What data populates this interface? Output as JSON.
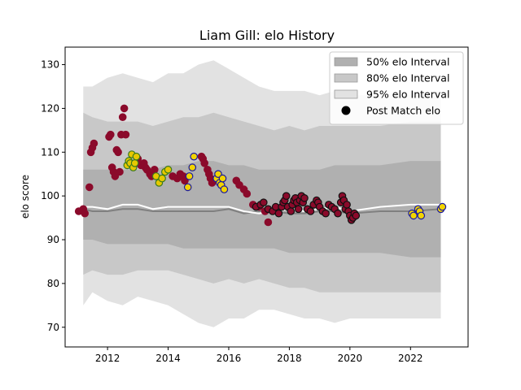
{
  "chart_data": {
    "type": "scatter",
    "title": "Liam Gill: elo History",
    "xlabel": "",
    "ylabel": "elo score",
    "xlim": [
      2010.6,
      2023.9
    ],
    "ylim": [
      65.5,
      134.0
    ],
    "xticks": [
      2012,
      2014,
      2016,
      2018,
      2020,
      2022
    ],
    "xtick_labels": [
      "2012",
      "2014",
      "2016",
      "2018",
      "2020",
      "2022"
    ],
    "yticks": [
      70,
      80,
      90,
      100,
      110,
      120,
      130
    ],
    "ytick_labels": [
      "70",
      "80",
      "90",
      "100",
      "110",
      "120",
      "130"
    ],
    "grid": false,
    "legend_position": "top-right",
    "legend": [
      {
        "label": "50% elo Interval",
        "swatch": "band",
        "color": "#b0b0b0"
      },
      {
        "label": "80% elo Interval",
        "swatch": "band",
        "color": "#c8c8c8"
      },
      {
        "label": "95% elo Interval",
        "swatch": "band",
        "color": "#e2e2e2"
      },
      {
        "label": "Post Match elo",
        "swatch": "marker",
        "color": "#000000"
      }
    ],
    "bands": {
      "x": [
        2011.2,
        2011.5,
        2012.0,
        2012.5,
        2013.0,
        2013.5,
        2014.0,
        2014.5,
        2015.0,
        2015.5,
        2016.0,
        2016.5,
        2017.0,
        2017.5,
        2018.0,
        2018.5,
        2019.0,
        2019.5,
        2020.0,
        2021.0,
        2022.0,
        2023.0
      ],
      "p95_upper": [
        125,
        125,
        127,
        128,
        127,
        126,
        128,
        128,
        130,
        131,
        129,
        127,
        125,
        124,
        124,
        124,
        123,
        124,
        123,
        123,
        123,
        123
      ],
      "p95_lower": [
        75,
        78,
        76,
        75,
        77,
        76,
        75,
        73,
        71,
        70,
        72,
        72,
        74,
        74,
        73,
        72,
        72,
        71,
        72,
        72,
        72,
        72
      ],
      "p80_upper": [
        119,
        118,
        117,
        117,
        117,
        116,
        117,
        118,
        118,
        119,
        118,
        117,
        116,
        115,
        116,
        115,
        116,
        116,
        116,
        116,
        117,
        117
      ],
      "p80_lower": [
        82,
        83,
        82,
        82,
        83,
        83,
        83,
        82,
        81,
        80,
        81,
        80,
        81,
        80,
        79,
        79,
        78,
        78,
        78,
        78,
        78,
        78
      ],
      "p50_upper": [
        106,
        106,
        106,
        106,
        106,
        106,
        107,
        107,
        108,
        108,
        107,
        107,
        106,
        106,
        106,
        106,
        106,
        107,
        107,
        107,
        108,
        108
      ],
      "p50_lower": [
        90,
        90,
        89,
        89,
        89,
        89,
        89,
        88,
        88,
        88,
        88,
        88,
        88,
        88,
        87,
        87,
        87,
        87,
        87,
        87,
        86,
        86
      ],
      "mean": [
        97.0,
        96.5,
        96.5,
        97.0,
        97.0,
        96.5,
        96.5,
        96.5,
        96.5,
        96.5,
        97.0,
        96.0,
        96.5,
        96.5,
        96.0,
        96.0,
        96.5,
        96.5,
        96.0,
        96.5,
        96.5,
        97.0
      ],
      "median": [
        97.5,
        97.5,
        97.0,
        98.0,
        98.0,
        97.0,
        97.5,
        97.5,
        97.5,
        97.5,
        97.5,
        96.5,
        96.0,
        96.5,
        97.0,
        96.5,
        97.0,
        97.5,
        96.5,
        97.5,
        98.0,
        98.0
      ]
    },
    "series": [
      {
        "fill": "#8b0a2b",
        "edge": "#8b0a2b",
        "x": [
          2011.05,
          2011.2,
          2011.25,
          2011.4,
          2011.45,
          2011.5,
          2011.55,
          2012.05,
          2012.1,
          2012.15,
          2012.2,
          2012.25,
          2012.3,
          2012.35,
          2012.4,
          2012.45,
          2012.5,
          2012.55,
          2012.6,
          2013.0,
          2013.1,
          2013.2,
          2013.25,
          2013.3,
          2013.4,
          2013.45,
          2013.55,
          2014.15,
          2014.3,
          2014.4,
          2014.45,
          2014.5,
          2014.55,
          2015.1,
          2015.15,
          2015.2,
          2015.3,
          2015.35,
          2015.4,
          2015.45,
          2015.5,
          2016.25,
          2016.35,
          2016.5,
          2016.6,
          2016.8,
          2017.0,
          2017.2,
          2017.3
        ],
        "y": [
          96.5,
          97.0,
          96.0,
          102.0,
          110.0,
          111.0,
          112.0,
          113.5,
          114.0,
          106.5,
          105.5,
          104.5,
          110.5,
          110.0,
          105.5,
          114.0,
          118.0,
          120.0,
          114.0,
          108.5,
          107.0,
          107.5,
          106.5,
          106.0,
          105.0,
          104.5,
          106.0,
          104.5,
          104.0,
          105.0,
          104.5,
          104.5,
          103.5,
          109.0,
          108.5,
          107.5,
          106.0,
          105.0,
          104.0,
          103.0,
          103.5,
          103.5,
          102.5,
          101.5,
          100.5,
          98.0,
          97.5,
          96.5,
          94.0
        ]
      },
      {
        "fill": "#e6c800",
        "edge": "#3a7a1e",
        "x": [
          2012.65,
          2012.7,
          2012.75,
          2012.8,
          2012.85,
          2012.9,
          2012.95,
          2013.6,
          2013.7,
          2013.8,
          2013.9,
          2014.0
        ],
        "y": [
          107.0,
          108.0,
          107.5,
          109.5,
          106.5,
          107.5,
          109.0,
          104.5,
          103.0,
          104.0,
          105.5,
          106.0
        ]
      },
      {
        "fill": "#f2d400",
        "edge": "#1a1aa0",
        "x": [
          2014.65,
          2014.7,
          2014.8,
          2014.85,
          2015.6,
          2015.65,
          2015.7,
          2015.75,
          2015.8,
          2015.85,
          2022.05,
          2022.1,
          2022.25,
          2022.3,
          2022.35,
          2023.0,
          2023.05
        ],
        "y": [
          102.0,
          104.5,
          106.5,
          109.0,
          104.0,
          105.0,
          103.0,
          102.5,
          104.0,
          101.5,
          96.0,
          95.5,
          97.0,
          96.5,
          95.5,
          97.0,
          97.5
        ]
      },
      {
        "fill": "#8b0a2b",
        "edge": "#111111",
        "x": [
          2016.9,
          2017.05,
          2017.15,
          2017.3,
          2017.45,
          2017.55,
          2017.65,
          2017.75,
          2017.8,
          2017.85,
          2017.9,
          2017.95,
          2018.05,
          2018.1,
          2018.15,
          2018.2,
          2018.25,
          2018.3,
          2018.35,
          2018.4,
          2018.45,
          2018.5,
          2018.6,
          2018.7,
          2018.8,
          2018.9,
          2018.95,
          2019.0,
          2019.1,
          2019.2,
          2019.3,
          2019.4,
          2019.5,
          2019.6,
          2019.7,
          2019.75,
          2019.8,
          2019.85,
          2019.9,
          2019.95,
          2020.0,
          2020.05,
          2020.1,
          2020.15,
          2020.2
        ],
        "y": [
          97.5,
          98.0,
          98.5,
          97.0,
          96.5,
          97.5,
          96.0,
          97.5,
          98.5,
          99.0,
          100.0,
          97.5,
          96.5,
          98.0,
          99.0,
          99.5,
          98.5,
          97.0,
          99.0,
          100.0,
          98.5,
          99.5,
          97.0,
          96.5,
          98.0,
          99.0,
          98.5,
          97.5,
          96.5,
          96.0,
          98.0,
          97.5,
          97.0,
          96.0,
          98.5,
          100.0,
          99.0,
          97.0,
          98.0,
          96.5,
          95.5,
          94.5,
          95.0,
          96.0,
          95.5
        ]
      }
    ]
  }
}
